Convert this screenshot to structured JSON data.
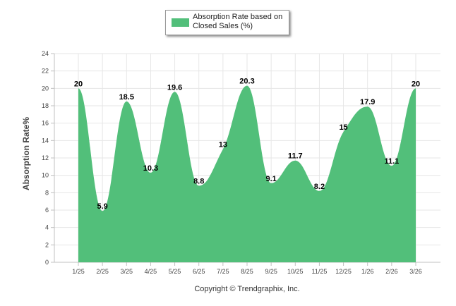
{
  "chart_data": {
    "type": "area",
    "title": "",
    "xlabel": "",
    "ylabel": "Absorption Rate%",
    "ylim": [
      0,
      24
    ],
    "ytick_step": 2,
    "grid": true,
    "legend_position": "top-center",
    "categories": [
      "1/25",
      "2/25",
      "3/25",
      "4/25",
      "5/25",
      "6/25",
      "7/25",
      "8/25",
      "9/25",
      "10/25",
      "11/25",
      "12/25",
      "1/26",
      "2/26",
      "3/26"
    ],
    "series": [
      {
        "name": "Absorption Rate based on Closed Sales (%)",
        "color": "#52bf7a",
        "values": [
          20,
          5.9,
          18.5,
          10.3,
          19.6,
          8.8,
          13,
          20.3,
          9.1,
          11.7,
          8.2,
          15,
          17.9,
          11.1,
          20
        ]
      }
    ]
  },
  "footer": "Copyright © Trendgraphix, Inc.",
  "colors": {
    "grid": "#e6e6e6",
    "axis": "#c0c0c0"
  }
}
